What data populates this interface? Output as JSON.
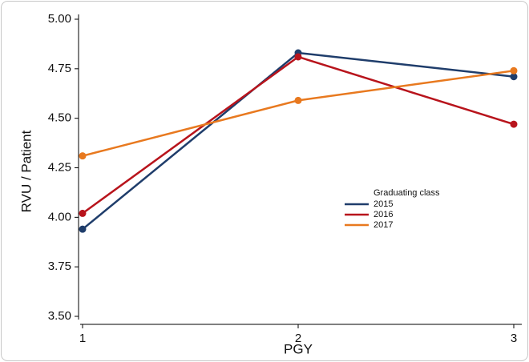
{
  "chart_data": {
    "type": "line",
    "xlabel": "PGY",
    "ylabel": "RVU / Patient",
    "x": [
      1,
      2,
      3
    ],
    "xlim": [
      1,
      3
    ],
    "xticks": [
      1,
      2,
      3
    ],
    "ylim": [
      3.5,
      5.0
    ],
    "yticks": [
      {
        "value": 3.5,
        "label": "3.50"
      },
      3.75,
      {
        "value": 4,
        "label": "4.00"
      },
      4.25,
      {
        "value": 4.5,
        "label": "4.50"
      },
      4.75,
      {
        "value": 5,
        "label": "5.00"
      }
    ],
    "grid": false,
    "legend_title": "Graduating class",
    "legend_position": "right",
    "series": [
      {
        "name": "2015",
        "color": "#1f3d6b",
        "values": [
          3.94,
          4.83,
          4.71
        ]
      },
      {
        "name": "2016",
        "color": "#b8141c",
        "values": [
          4.02,
          4.81,
          4.47
        ]
      },
      {
        "name": "2017",
        "color": "#e8791f",
        "values": [
          4.31,
          4.59,
          4.74
        ]
      }
    ]
  }
}
